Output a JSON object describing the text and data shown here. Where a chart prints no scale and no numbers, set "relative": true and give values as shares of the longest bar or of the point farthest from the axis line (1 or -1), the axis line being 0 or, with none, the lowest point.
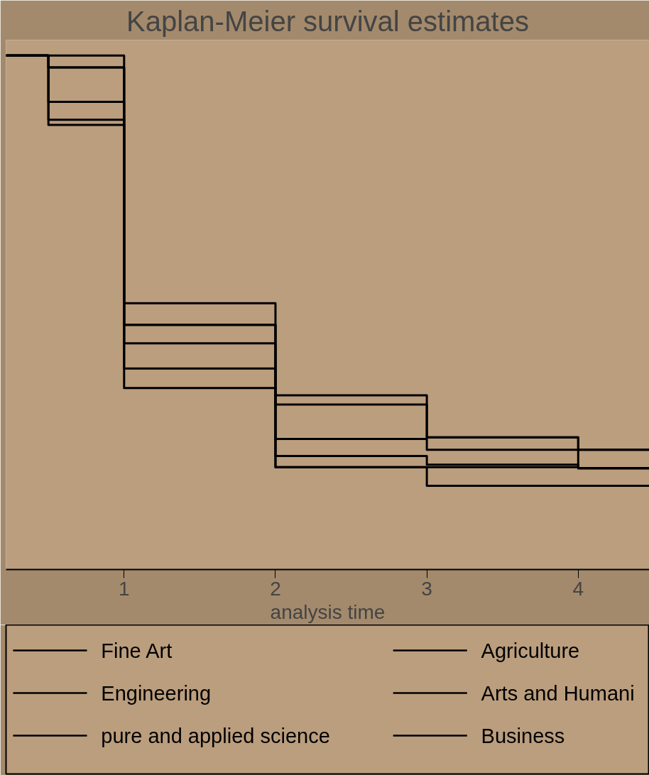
{
  "chart_data": {
    "type": "step",
    "title": "Kaplan-Meier survival estimates",
    "xlabel": "analysis time",
    "relative": true,
    "x": [
      0.22,
      0.5,
      1,
      2,
      3,
      4,
      4.47
    ],
    "xlim": [
      0.22,
      4.47
    ],
    "xticks": [
      1,
      2,
      3,
      4
    ],
    "tick_labels": "x",
    "legend": "bottom",
    "line_style": "solid",
    "series": [
      {
        "name": "Fine Art",
        "color": "#000000",
        "values": [
          1,
          1,
          0.518,
          0.339,
          0.257,
          0.233,
          0.233
        ]
      },
      {
        "name": "Agriculture",
        "color": "#000000",
        "values": [
          1,
          0.977,
          0.476,
          0.321,
          0.257,
          0.233,
          0.233
        ]
      },
      {
        "name": "Engineering",
        "color": "#000000",
        "values": [
          1,
          0.977,
          0.476,
          0.254,
          0.233,
          0.197,
          0.197
        ]
      },
      {
        "name": "Arts and Humani",
        "color": "#000000",
        "values": [
          1,
          0.91,
          0.44,
          0.221,
          0.204,
          0.197,
          0.197
        ]
      },
      {
        "name": "pure and applied science",
        "color": "#000000",
        "values": [
          1,
          0.875,
          0.391,
          0.199,
          0.199,
          0.197,
          0.197
        ]
      },
      {
        "name": "Business",
        "color": "#000000",
        "values": [
          1,
          0.865,
          0.353,
          0.199,
          0.163,
          0.163,
          0.163
        ]
      }
    ]
  }
}
